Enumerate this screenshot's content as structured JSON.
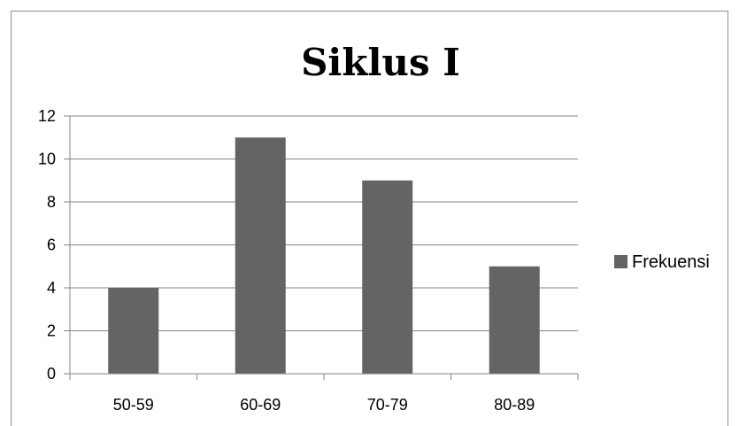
{
  "chart_data": {
    "type": "bar",
    "title": "Siklus I",
    "categories": [
      "50-59",
      "60-69",
      "70-79",
      "80-89"
    ],
    "series": [
      {
        "name": "Frekuensi",
        "values": [
          4,
          11,
          9,
          5
        ]
      }
    ],
    "ylim": [
      0,
      12
    ],
    "yticks": [
      0,
      2,
      4,
      6,
      8,
      10,
      12
    ],
    "xlabel": "",
    "ylabel": "",
    "grid": true,
    "legend_position": "right",
    "bar_color": "#646464",
    "grid_color": "#868686"
  }
}
